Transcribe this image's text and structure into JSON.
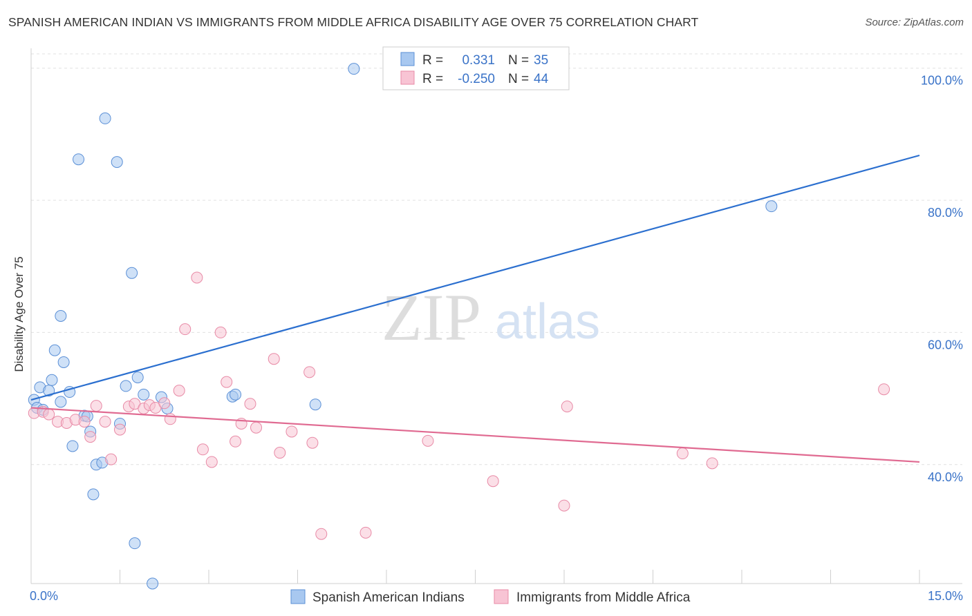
{
  "title": "SPANISH AMERICAN INDIAN VS IMMIGRANTS FROM MIDDLE AFRICA DISABILITY AGE OVER 75 CORRELATION CHART",
  "source": "Source: ZipAtlas.com",
  "watermark": {
    "zip": "ZIP",
    "atlas": "atlas"
  },
  "chart_data": {
    "type": "scatter",
    "title": "SPANISH AMERICAN INDIAN VS IMMIGRANTS FROM MIDDLE AFRICA DISABILITY AGE OVER 75 CORRELATION CHART",
    "xlabel": "",
    "ylabel": "Disability Age Over 75",
    "xlim": [
      0,
      15
    ],
    "ylim": [
      22,
      103
    ],
    "x_tick_labels": [
      "0.0%",
      "15.0%"
    ],
    "y_ticks": [
      40,
      60,
      80,
      100
    ],
    "y_tick_labels": [
      "40.0%",
      "60.0%",
      "80.0%",
      "100.0%"
    ],
    "grid": true,
    "legend_position": "top-center",
    "legend": [
      {
        "r_label": "R =",
        "r_value": "0.331",
        "n_label": "N =",
        "n_value": "35"
      },
      {
        "r_label": "R =",
        "r_value": "-0.250",
        "n_label": "N =",
        "n_value": "44"
      }
    ],
    "series": [
      {
        "name": "Spanish American Indians",
        "color": "#a8c8f0",
        "stroke": "#5a8fd6",
        "trend_color": "#2b6fcf",
        "trend": {
          "x": [
            0,
            15
          ],
          "y": [
            49.8,
            86.8
          ]
        },
        "points": [
          [
            0.05,
            49.8
          ],
          [
            0.1,
            48.6
          ],
          [
            0.15,
            51.7
          ],
          [
            0.2,
            48.3
          ],
          [
            0.3,
            51.2
          ],
          [
            0.35,
            52.8
          ],
          [
            0.4,
            57.3
          ],
          [
            0.5,
            62.5
          ],
          [
            0.5,
            49.5
          ],
          [
            0.55,
            55.5
          ],
          [
            0.65,
            51.0
          ],
          [
            0.7,
            42.8
          ],
          [
            0.8,
            86.2
          ],
          [
            0.9,
            47.4
          ],
          [
            1.0,
            45.0
          ],
          [
            1.1,
            40.0
          ],
          [
            1.05,
            35.5
          ],
          [
            1.2,
            40.3
          ],
          [
            1.25,
            92.4
          ],
          [
            1.45,
            85.8
          ],
          [
            1.5,
            46.2
          ],
          [
            1.6,
            51.9
          ],
          [
            1.7,
            69.0
          ],
          [
            1.75,
            28.1
          ],
          [
            1.8,
            53.2
          ],
          [
            1.9,
            50.6
          ],
          [
            2.05,
            22.0
          ],
          [
            2.2,
            50.2
          ],
          [
            2.3,
            48.5
          ],
          [
            3.4,
            50.3
          ],
          [
            3.45,
            50.6
          ],
          [
            4.8,
            49.1
          ],
          [
            5.45,
            99.9
          ],
          [
            12.5,
            79.1
          ],
          [
            0.95,
            47.3
          ]
        ]
      },
      {
        "name": "Immigrants from Middle Africa",
        "color": "#f8c4d4",
        "stroke": "#e88aa6",
        "trend_color": "#e06a91",
        "trend": {
          "x": [
            0,
            15
          ],
          "y": [
            48.6,
            40.4
          ]
        },
        "points": [
          [
            0.05,
            47.8
          ],
          [
            0.2,
            48.0
          ],
          [
            0.3,
            47.6
          ],
          [
            0.45,
            46.5
          ],
          [
            0.6,
            46.3
          ],
          [
            0.75,
            46.8
          ],
          [
            0.9,
            46.5
          ],
          [
            1.0,
            44.2
          ],
          [
            1.1,
            48.9
          ],
          [
            1.25,
            46.5
          ],
          [
            1.35,
            40.8
          ],
          [
            1.5,
            45.3
          ],
          [
            1.65,
            48.8
          ],
          [
            1.75,
            49.2
          ],
          [
            1.9,
            48.5
          ],
          [
            2.0,
            49.0
          ],
          [
            2.1,
            48.6
          ],
          [
            2.25,
            49.3
          ],
          [
            2.35,
            46.9
          ],
          [
            2.5,
            51.2
          ],
          [
            2.6,
            60.5
          ],
          [
            2.8,
            68.3
          ],
          [
            2.9,
            42.3
          ],
          [
            3.05,
            40.4
          ],
          [
            3.2,
            60.0
          ],
          [
            3.3,
            52.5
          ],
          [
            3.45,
            43.5
          ],
          [
            3.55,
            46.2
          ],
          [
            3.7,
            49.2
          ],
          [
            3.8,
            45.6
          ],
          [
            4.1,
            56.0
          ],
          [
            4.2,
            41.8
          ],
          [
            4.4,
            45.0
          ],
          [
            4.7,
            54.0
          ],
          [
            4.75,
            43.3
          ],
          [
            4.9,
            29.5
          ],
          [
            5.65,
            29.7
          ],
          [
            6.7,
            43.6
          ],
          [
            7.8,
            37.5
          ],
          [
            9.05,
            48.8
          ],
          [
            9.0,
            33.8
          ],
          [
            11.0,
            41.7
          ],
          [
            11.5,
            40.2
          ],
          [
            14.4,
            51.4
          ]
        ]
      }
    ]
  }
}
